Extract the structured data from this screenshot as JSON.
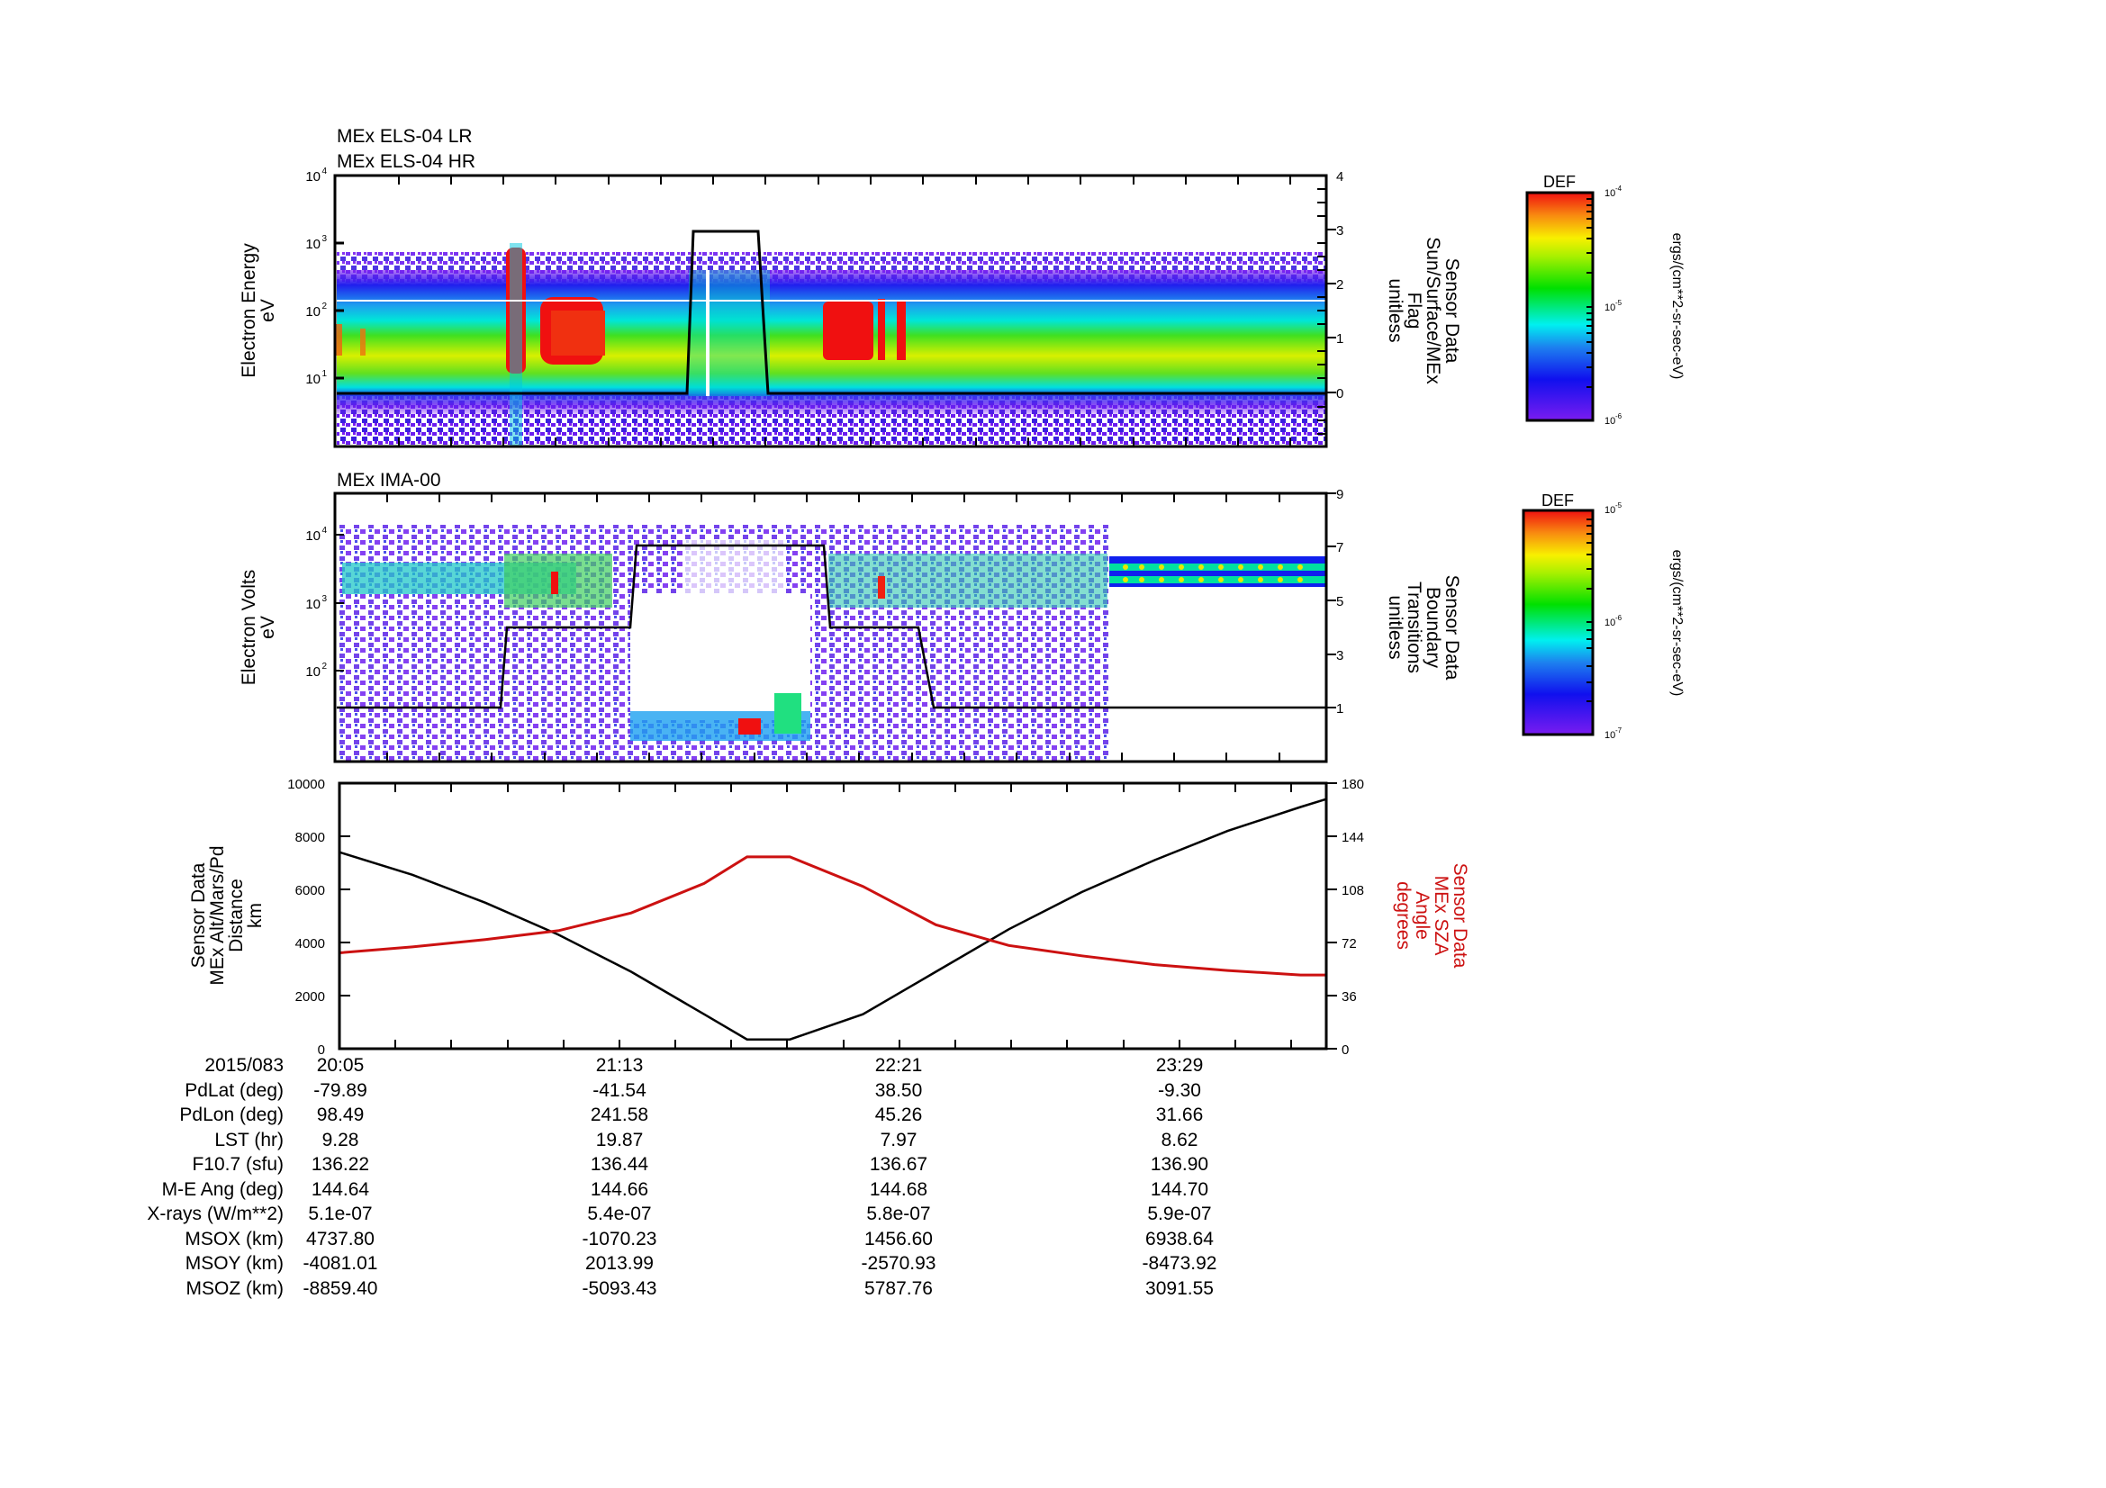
{
  "chart_data": [
    {
      "type": "heatmap",
      "title": "MEx ELS-04 LR / MEx ELS-04 HR",
      "titles": [
        "MEx ELS-04 LR",
        "MEx ELS-04 HR"
      ],
      "ylabel": [
        "Electron Energy",
        "eV"
      ],
      "yscale": "log",
      "ylim": [
        1,
        10000
      ],
      "yticks": [
        "10^1",
        "10^2",
        "10^3",
        "10^4"
      ],
      "y2label": [
        "Sensor Data",
        "Sun/Surface/MEx",
        "Flag",
        "unitless"
      ],
      "y2lim": [
        -1,
        4
      ],
      "y2ticks": [
        0,
        1,
        2,
        3,
        4
      ],
      "colorbar": {
        "label": "DEF",
        "units": "ergs/(cm**2-sr-sec-eV)",
        "range": [
          "10^-6",
          "10^-4"
        ],
        "ticks": [
          "10^-6",
          "10^-5",
          "10^-4"
        ]
      },
      "overlay_line": {
        "name": "Sun/Surface/MEx Flag",
        "x": [
          "20:05",
          "21:28",
          "21:29",
          "21:47",
          "21:48",
          "23:55"
        ],
        "y": [
          0,
          0,
          3,
          3,
          0,
          0
        ]
      }
    },
    {
      "type": "heatmap",
      "title": "MEx IMA-00",
      "ylabel": [
        "Electron Volts",
        "eV"
      ],
      "yscale": "log",
      "ylim": [
        20,
        40000
      ],
      "yticks": [
        "10^2",
        "10^3",
        "10^4"
      ],
      "y2label": [
        "Sensor Data",
        "Boundary",
        "Transitions",
        "unitless"
      ],
      "y2lim": [
        0,
        9
      ],
      "y2ticks": [
        1,
        3,
        5,
        7,
        9
      ],
      "colorbar": {
        "label": "DEF",
        "units": "ergs/(cm**2-sr-sec-eV)",
        "range": [
          "10^-7",
          "10^-5"
        ],
        "ticks": [
          "10^-7",
          "10^-6",
          "10^-5"
        ]
      },
      "overlay_line": {
        "name": "Boundary Transitions",
        "x": [
          "20:05",
          "20:42",
          "20:44",
          "21:13",
          "21:15",
          "21:58",
          "22:00",
          "22:14",
          "22:16",
          "23:55"
        ],
        "y": [
          1,
          1,
          4,
          4,
          7,
          7,
          4,
          4,
          1,
          1
        ]
      }
    },
    {
      "type": "line",
      "xlabel": "2015/083",
      "x_ticks": [
        "20:05",
        "21:13",
        "22:21",
        "23:29"
      ],
      "ylabel": [
        "Sensor Data",
        "MEx Alt/Mars/Pd",
        "Distance",
        "km"
      ],
      "ylim": [
        0,
        10000
      ],
      "yticks": [
        0,
        2000,
        4000,
        6000,
        8000,
        10000
      ],
      "y2label": [
        "Sensor Data",
        "MEx SZA",
        "Angle",
        "degrees"
      ],
      "y2lim": [
        0,
        180
      ],
      "y2ticks": [
        0,
        36,
        72,
        108,
        144,
        180
      ],
      "series": [
        {
          "name": "MEx Alt/Mars/Pd Distance (km)",
          "color": "#000000",
          "axis": "left",
          "x": [
            "20:05",
            "20:22",
            "20:39",
            "20:56",
            "21:13",
            "21:30",
            "21:40",
            "21:50",
            "22:07",
            "22:24",
            "22:41",
            "22:58",
            "23:15",
            "23:32",
            "23:49",
            "23:55"
          ],
          "values": [
            7400,
            6550,
            5500,
            4300,
            2900,
            1300,
            350,
            350,
            1300,
            2900,
            4500,
            5900,
            7100,
            8200,
            9100,
            9400
          ]
        },
        {
          "name": "MEx SZA Angle (deg)",
          "color": "#cc1111",
          "axis": "right",
          "x": [
            "20:05",
            "20:22",
            "20:39",
            "20:56",
            "21:13",
            "21:30",
            "21:40",
            "21:50",
            "22:07",
            "22:24",
            "22:41",
            "22:58",
            "23:15",
            "23:32",
            "23:49",
            "23:55"
          ],
          "values": [
            65,
            69,
            74,
            80,
            92,
            112,
            130,
            130,
            110,
            84,
            70,
            63,
            57,
            53,
            50,
            50
          ]
        }
      ]
    }
  ],
  "ephemeris": {
    "labels": [
      "2015/083",
      "PdLat (deg)",
      "PdLon (deg)",
      "LST (hr)",
      "F10.7 (sfu)",
      "M-E Ang (deg)",
      "X-rays (W/m**2)",
      "MSOX (km)",
      "MSOY (km)",
      "MSOZ (km)"
    ],
    "columns": [
      {
        "time": "20:05",
        "values": [
          "-79.89",
          "98.49",
          "9.28",
          "136.22",
          "144.64",
          "5.1e-07",
          "4737.80",
          "-4081.01",
          "-8859.40"
        ]
      },
      {
        "time": "21:13",
        "values": [
          "-41.54",
          "241.58",
          "19.87",
          "136.44",
          "144.66",
          "5.4e-07",
          "-1070.23",
          "2013.99",
          "-5093.43"
        ]
      },
      {
        "time": "22:21",
        "values": [
          "38.50",
          "45.26",
          "7.97",
          "136.67",
          "144.68",
          "5.8e-07",
          "1456.60",
          "-2570.93",
          "5787.76"
        ]
      },
      {
        "time": "23:29",
        "values": [
          "-9.30",
          "31.66",
          "8.62",
          "136.90",
          "144.70",
          "5.9e-07",
          "6938.64",
          "-8473.92",
          "3091.55"
        ]
      }
    ]
  },
  "colors": {
    "sza_line": "#cc1111",
    "alt_line": "#000000"
  }
}
